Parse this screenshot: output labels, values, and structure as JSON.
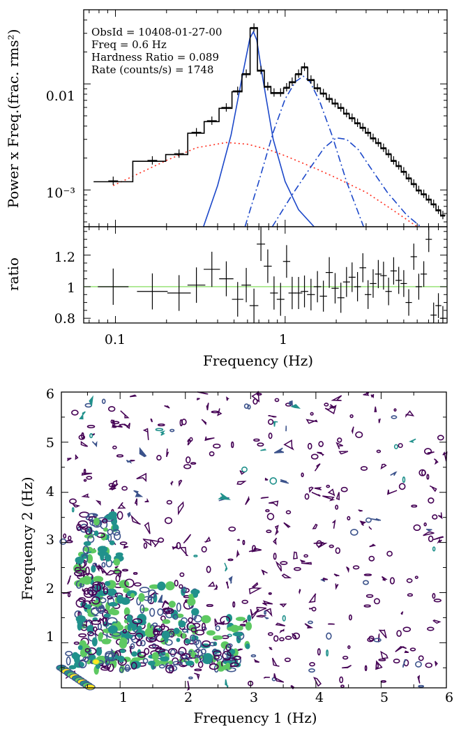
{
  "chart_data": [
    {
      "type": "line",
      "panel": "power-spectrum",
      "xscale": "log",
      "yscale": "log",
      "xlim": [
        0.065,
        9
      ],
      "ylim": [
        0.00045,
        0.05
      ],
      "xlabel": "Frequency (Hz)",
      "ylabel": "Power x Freq.(frac. rms²)",
      "xticks": [
        "0.1",
        "1"
      ],
      "yticks": [
        "0.01",
        "10⁻³"
      ],
      "annotations": [
        "ObsId = 10408-01-27-00",
        "Freq = 0.6 Hz",
        "Hardness Ratio = 0.089",
        "Rate (counts/s) = 1748"
      ],
      "data_points": {
        "x": [
          0.097,
          0.165,
          0.237,
          0.3,
          0.37,
          0.45,
          0.525,
          0.59,
          0.655,
          0.72,
          0.79,
          0.86,
          0.94,
          1.02,
          1.1,
          1.2,
          1.3,
          1.42,
          1.55,
          1.68,
          1.82,
          1.97,
          2.13,
          2.3,
          2.48,
          2.67,
          2.87,
          3.08,
          3.3,
          3.54,
          3.8,
          4.07,
          4.36,
          4.67,
          5.0,
          5.35,
          5.73,
          6.13,
          6.56,
          7.02,
          7.5,
          8.0,
          8.5
        ],
        "y": [
          0.00122,
          0.0019,
          0.0022,
          0.0035,
          0.0045,
          0.006,
          0.0086,
          0.0125,
          0.034,
          0.0135,
          0.0095,
          0.0083,
          0.0083,
          0.0093,
          0.0105,
          0.0125,
          0.0145,
          0.011,
          0.0092,
          0.0082,
          0.0073,
          0.0066,
          0.006,
          0.0053,
          0.0048,
          0.0043,
          0.0039,
          0.0035,
          0.0031,
          0.0028,
          0.0025,
          0.0022,
          0.0019,
          0.0017,
          0.0015,
          0.0013,
          0.00115,
          0.001,
          0.00092,
          0.00082,
          0.00074,
          0.00065,
          0.00058
        ]
      },
      "components": [
        {
          "name": "",
          "color": "#ff2a1a",
          "style": "dotted",
          "x": [
            0.097,
            0.2,
            0.3,
            0.45,
            0.6,
            0.8,
            1.0,
            1.5,
            2.0,
            3.0,
            4.0,
            5.0,
            6.0
          ],
          "y": [
            0.0011,
            0.0019,
            0.0025,
            0.0028,
            0.0027,
            0.0024,
            0.0021,
            0.0016,
            0.0013,
            0.00095,
            0.0007,
            0.00055,
            0.00045
          ]
        },
        {
          "name": "",
          "color": "#1b47c9",
          "style": "solid",
          "x": [
            0.33,
            0.4,
            0.48,
            0.56,
            0.62,
            0.65,
            0.68,
            0.74,
            0.85,
            1.0,
            1.2,
            1.48
          ],
          "y": [
            0.00045,
            0.0011,
            0.0033,
            0.012,
            0.027,
            0.031,
            0.026,
            0.011,
            0.003,
            0.0012,
            0.00065,
            0.00045
          ]
        },
        {
          "name": "",
          "color": "#1b47c9",
          "style": "dashdot",
          "x": [
            0.58,
            0.7,
            0.85,
            1.0,
            1.15,
            1.28,
            1.4,
            1.6,
            1.9,
            2.3,
            2.9
          ],
          "y": [
            0.00045,
            0.0012,
            0.0035,
            0.0072,
            0.0105,
            0.0118,
            0.0105,
            0.0068,
            0.0032,
            0.0012,
            0.00045
          ]
        },
        {
          "name": "",
          "color": "#1b47c9",
          "style": "dashdot",
          "x": [
            0.84,
            1.1,
            1.4,
            1.7,
            2.0,
            2.3,
            2.7,
            3.2,
            4.0,
            5.2,
            6.3
          ],
          "y": [
            0.00045,
            0.0009,
            0.0016,
            0.0025,
            0.0031,
            0.003,
            0.0024,
            0.0016,
            0.00095,
            0.00058,
            0.00045
          ]
        }
      ]
    },
    {
      "type": "scatter",
      "panel": "ratio",
      "xscale": "log",
      "xlim": [
        0.065,
        9
      ],
      "ylim": [
        0.77,
        1.38
      ],
      "ylabel": "ratio",
      "xlabel": "Frequency (Hz)",
      "xticks": [
        "0.1",
        "1"
      ],
      "yticks": [
        "1.2",
        "1",
        "0.8"
      ],
      "reference_line": {
        "y": 1,
        "color": "#8ee06a"
      },
      "x": [
        0.097,
        0.165,
        0.237,
        0.3,
        0.37,
        0.45,
        0.525,
        0.59,
        0.655,
        0.72,
        0.79,
        0.86,
        0.94,
        1.02,
        1.1,
        1.2,
        1.3,
        1.42,
        1.55,
        1.68,
        1.82,
        1.97,
        2.13,
        2.3,
        2.48,
        2.67,
        2.87,
        3.08,
        3.3,
        3.54,
        3.8,
        4.07,
        4.36,
        4.67,
        5.0,
        5.35,
        5.73,
        6.13,
        6.56,
        7.02,
        7.5,
        8.0,
        8.5
      ],
      "y": [
        1.0,
        0.97,
        0.96,
        1.01,
        1.11,
        1.05,
        0.92,
        1.01,
        0.88,
        1.27,
        1.13,
        0.96,
        0.92,
        1.16,
        0.96,
        0.96,
        0.97,
        0.95,
        1.0,
        0.94,
        1.09,
        0.99,
        0.93,
        1.03,
        1.06,
        1.0,
        1.12,
        0.95,
        1.02,
        1.08,
        1.07,
        0.97,
        1.1,
        1.04,
        1.02,
        0.9,
        1.19,
        1.0,
        1.08,
        1.3,
        0.82,
        0.88,
        0.8
      ]
    },
    {
      "type": "heatmap",
      "panel": "bicoherence-contour",
      "xlim": [
        0.1,
        6
      ],
      "ylim": [
        0.1,
        6
      ],
      "xlabel": "Frequency 1 (Hz)",
      "ylabel": "Frequency 2 (Hz)",
      "xticks": [
        "1",
        "2",
        "3",
        "4",
        "5",
        "6"
      ],
      "yticks": [
        "1",
        "2",
        "3",
        "4",
        "5",
        "6"
      ],
      "colormap": [
        "#440154",
        "#3b528b",
        "#21918c",
        "#5ec962",
        "#fde725"
      ]
    }
  ]
}
